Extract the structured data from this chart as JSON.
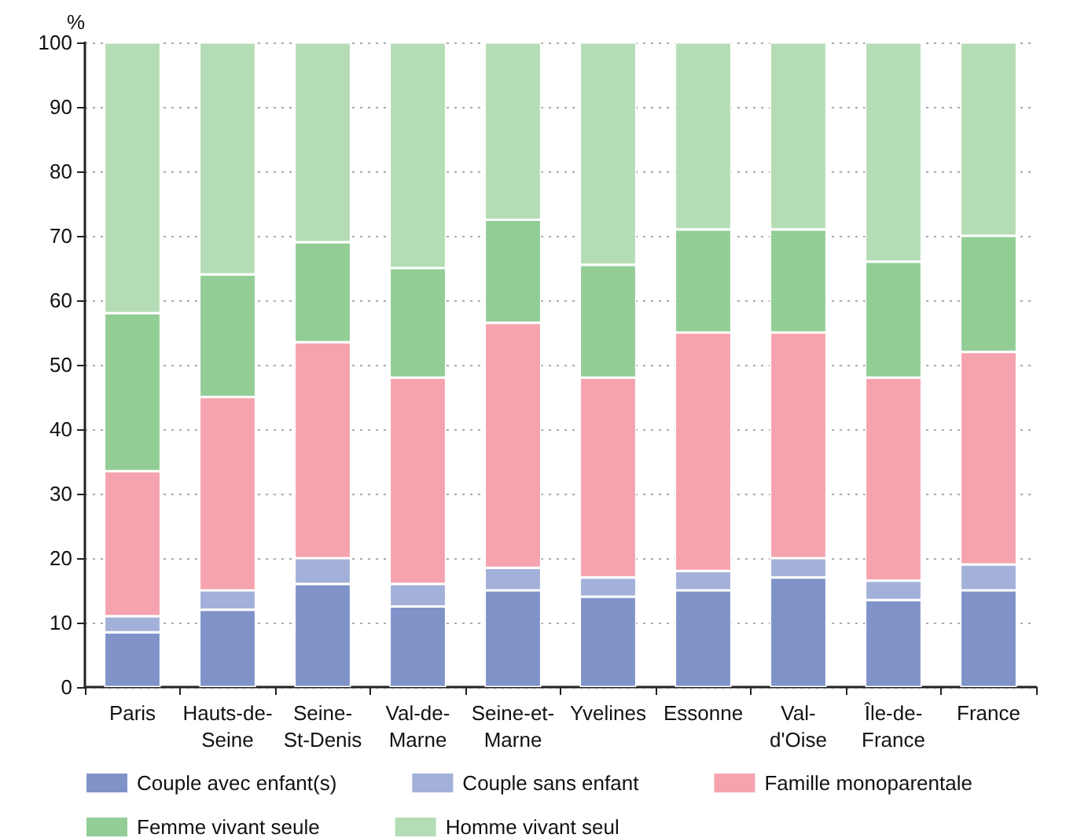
{
  "chart_data": {
    "type": "bar",
    "stacked": true,
    "ylabel": "%",
    "categories": [
      "Paris",
      "Hauts-de-\nSeine",
      "Seine-\nSt-Denis",
      "Val-de-\nMarne",
      "Seine-et-\nMarne",
      "Yvelines",
      "Essonne",
      "Val-\nd'Oise",
      "Île-de-\nFrance",
      "France"
    ],
    "series": [
      {
        "name": "Couple avec enfant(s)",
        "color": "#7f93c9",
        "values": [
          8.5,
          12,
          16,
          12.5,
          15,
          14,
          15,
          17,
          13.5,
          15
        ]
      },
      {
        "name": "Couple sans enfant",
        "color": "#a3b0d9",
        "values": [
          2.5,
          3,
          4,
          3.5,
          3.5,
          3,
          3,
          3,
          3,
          4
        ]
      },
      {
        "name": "Famille monoparentale",
        "color": "#f5a3ae",
        "values": [
          22.5,
          30,
          33.5,
          32,
          38,
          31,
          37,
          35,
          31.5,
          33
        ]
      },
      {
        "name": "Femme vivant seule",
        "color": "#92cd96",
        "values": [
          24.5,
          19,
          15.5,
          17,
          16,
          17.5,
          16,
          16,
          18,
          18
        ]
      },
      {
        "name": "Homme vivant seul",
        "color": "#b5ddb5",
        "values": [
          42,
          36,
          31,
          35,
          27.5,
          34.5,
          29,
          29,
          34,
          30
        ]
      }
    ],
    "ylim": [
      0,
      100
    ],
    "yticks": [
      0,
      10,
      20,
      30,
      40,
      50,
      60,
      70,
      80,
      90,
      100
    ],
    "grid": "y",
    "legend": "bottom"
  }
}
